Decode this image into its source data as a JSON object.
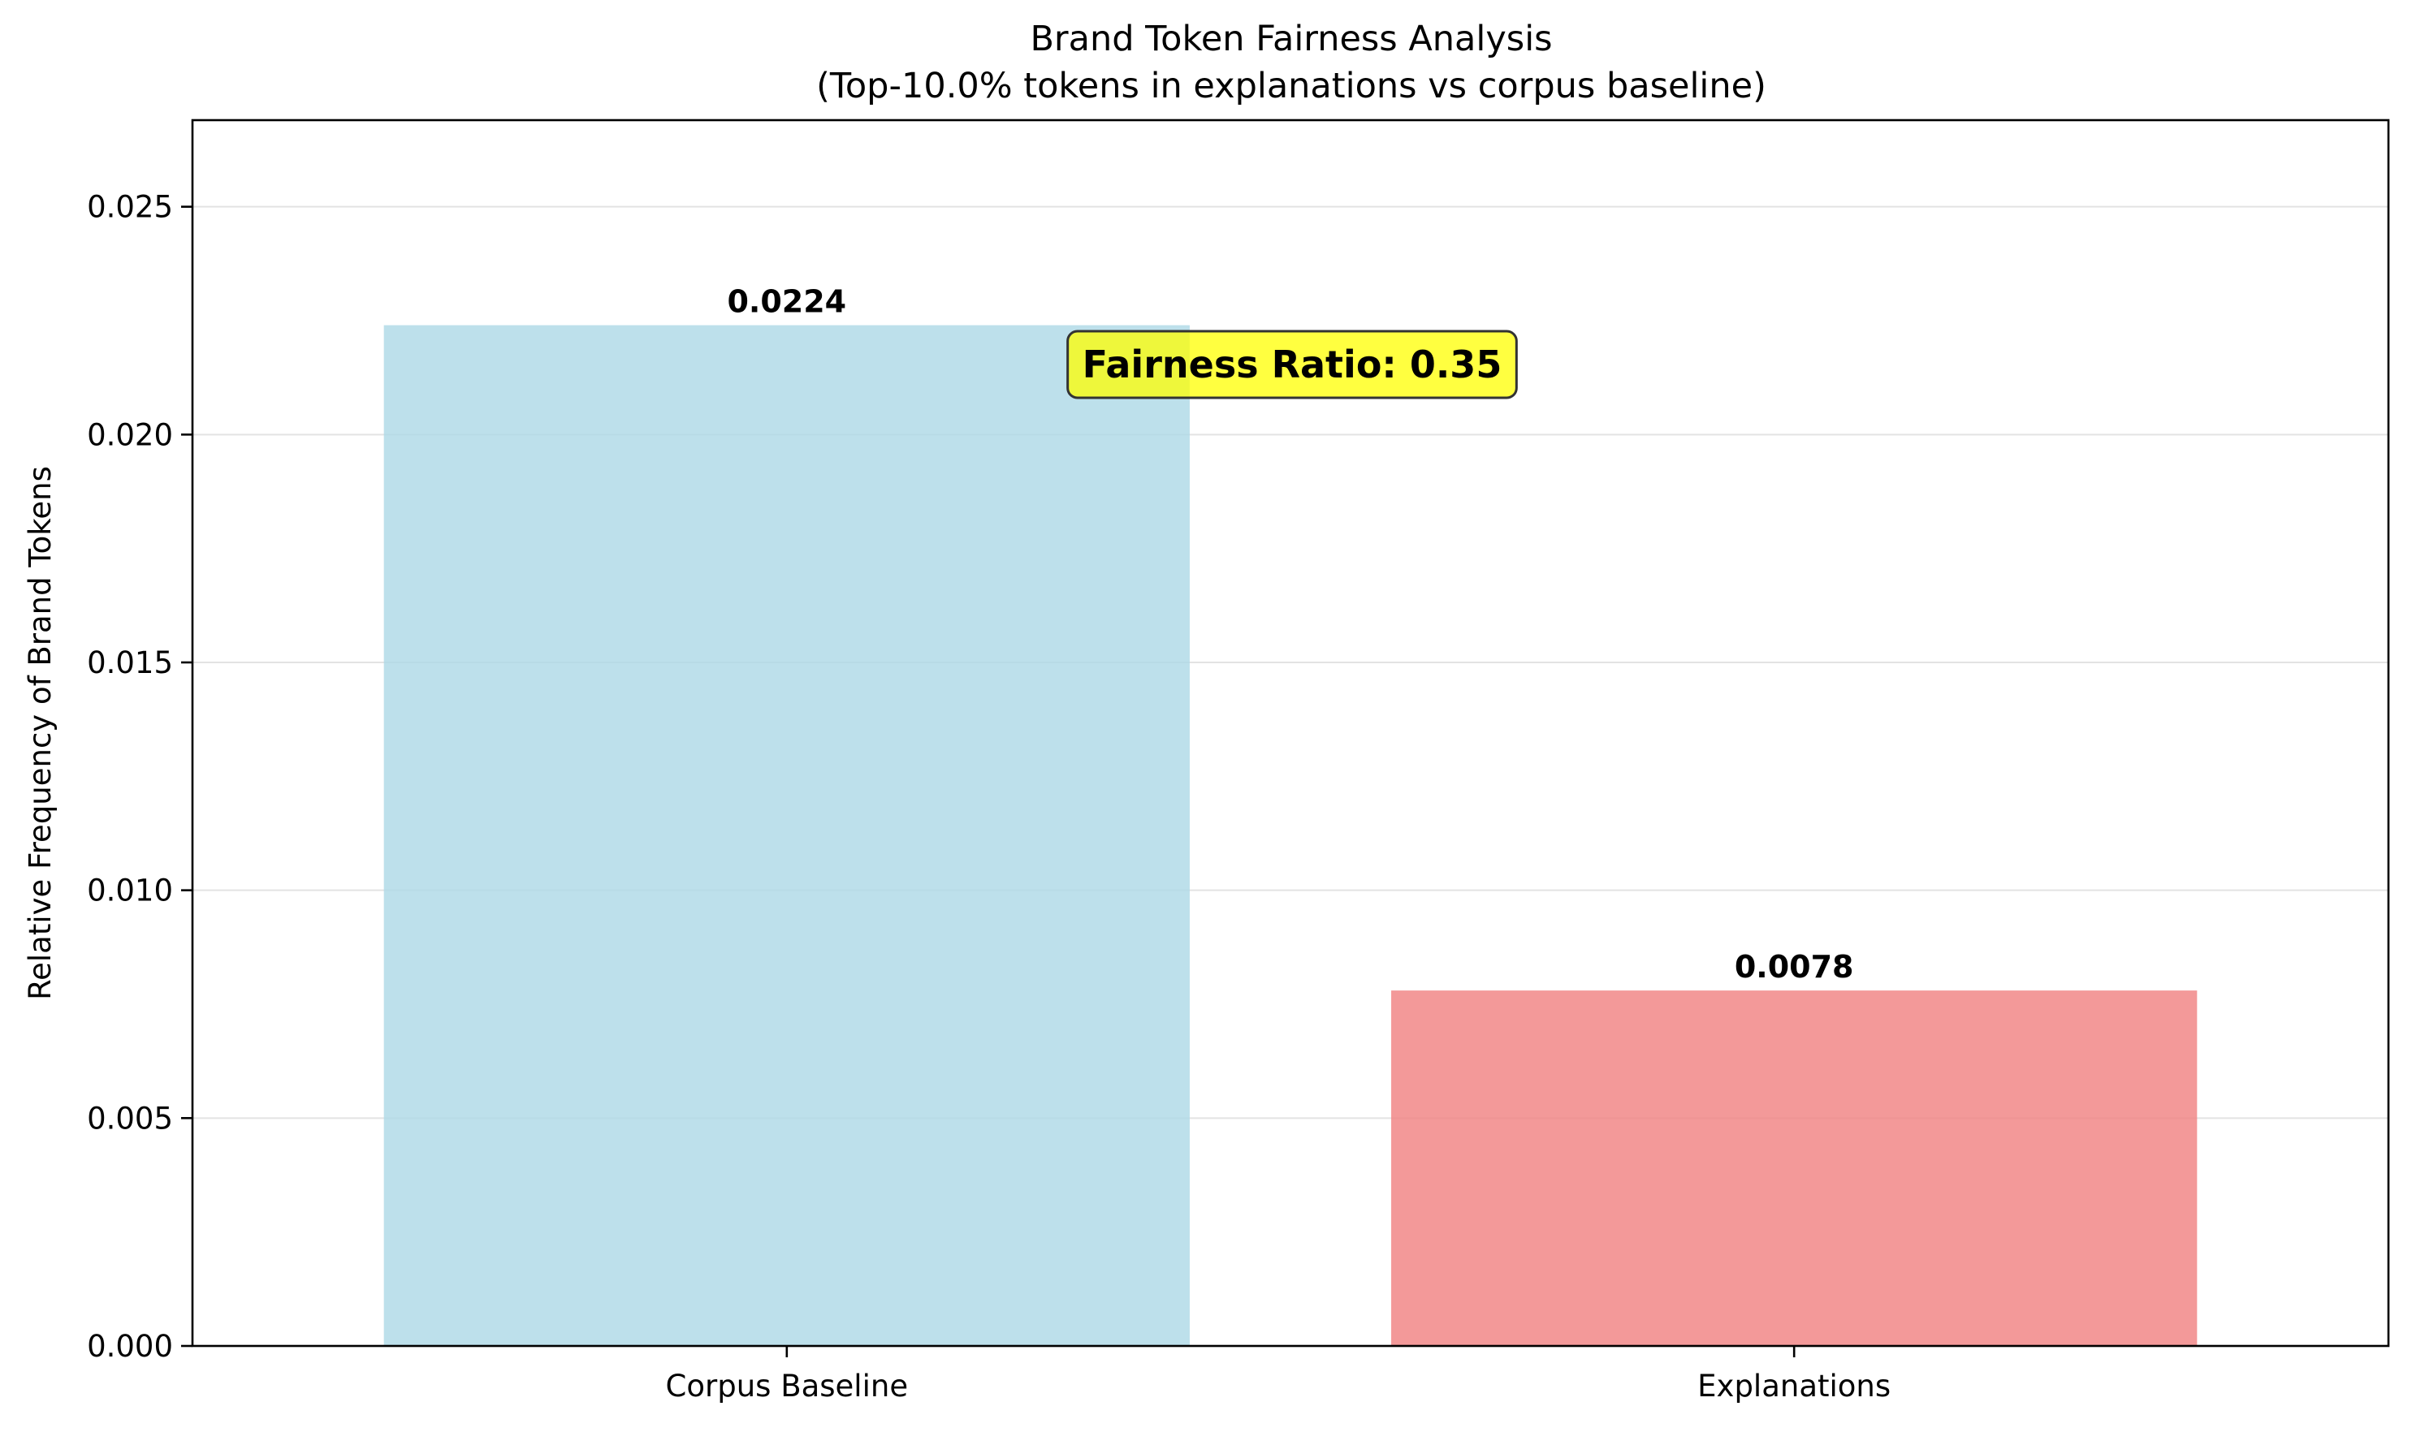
{
  "chart_data": {
    "type": "bar",
    "title": "Brand Token Fairness Analysis",
    "subtitle": "(Top-10.0% tokens in explanations vs corpus baseline)",
    "xlabel": "",
    "ylabel": "Relative Frequency of Brand Tokens",
    "categories": [
      "Corpus Baseline",
      "Explanations"
    ],
    "values": [
      0.0224,
      0.0078
    ],
    "value_labels": [
      "0.0224",
      "0.0078"
    ],
    "bar_colors": [
      "#add8e6",
      "#f08080"
    ],
    "bar_opacity": 0.8,
    "ylim": [
      0,
      0.0269
    ],
    "yticks": [
      0,
      0.005,
      0.01,
      0.015,
      0.02,
      0.025
    ],
    "ytick_labels": [
      "0.000",
      "0.005",
      "0.010",
      "0.015",
      "0.020",
      "0.025"
    ],
    "grid": "y-axis",
    "legend": "none",
    "annotation": {
      "text": "Fairness Ratio: 0.35",
      "background_color": "#ffff00",
      "anchor": "top-center"
    }
  }
}
